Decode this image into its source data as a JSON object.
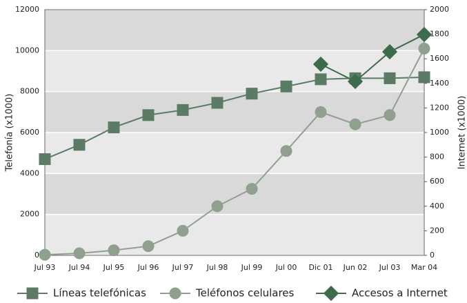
{
  "chart_data": {
    "type": "line",
    "categories": [
      "Jul 93",
      "Jul 94",
      "Jul 95",
      "Jul 96",
      "Jul 97",
      "Jul 98",
      "Jul 99",
      "Jul 00",
      "Dic 01",
      "Jun 02",
      "Jul 03",
      "Mar 04"
    ],
    "ylabel": "Telefonía (x1000)",
    "y2label": "Internet (x1000)",
    "ylim": [
      0,
      12000
    ],
    "yticks": [
      0,
      2000,
      4000,
      6000,
      8000,
      10000,
      12000
    ],
    "y2lim": [
      0,
      2000
    ],
    "y2ticks": [
      0,
      200,
      400,
      600,
      800,
      1000,
      1200,
      1400,
      1600,
      1800,
      2000
    ],
    "grid": true,
    "legend": "bottom",
    "series": [
      {
        "name": "Líneas telefónicas",
        "color": "#5b7b64",
        "marker": "square",
        "values": [
          4700,
          5400,
          6250,
          6850,
          7100,
          7450,
          7900,
          8250,
          8600,
          8650,
          8650,
          8700
        ]
      },
      {
        "name": "Teléfonos celulares",
        "color": "#8fa08f",
        "marker": "circle",
        "values": [
          30,
          100,
          250,
          450,
          1200,
          2400,
          3250,
          5100,
          7000,
          6400,
          6850,
          10100
        ]
      },
      {
        "name": "Accesos a Internet",
        "color": "#3e6b4c",
        "marker": "diamond",
        "axis": "y2",
        "values": [
          null,
          null,
          null,
          null,
          null,
          null,
          null,
          null,
          1556,
          1416,
          1657,
          1798
        ]
      }
    ]
  }
}
